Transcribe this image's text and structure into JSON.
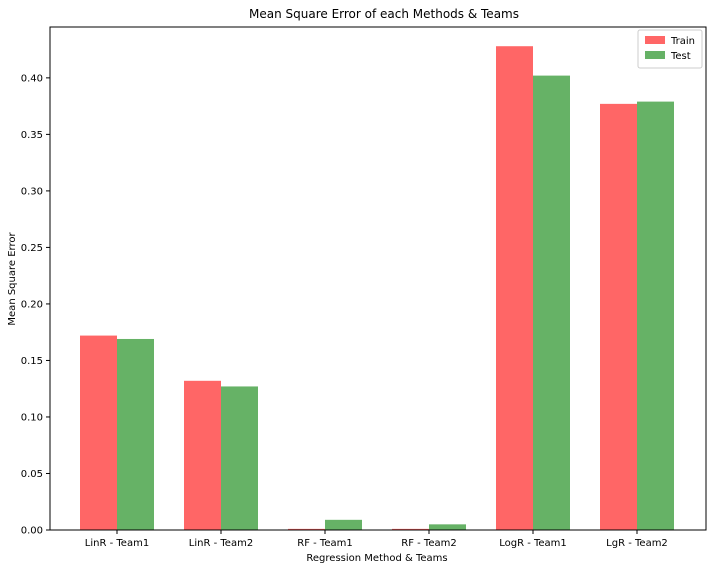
{
  "chart_data": {
    "type": "bar",
    "title": "Mean Square Error of each Methods & Teams",
    "xlabel": "Regression Method & Teams",
    "ylabel": "Mean Square Error",
    "categories": [
      "LinR - Team1",
      "LinR - Team2",
      "RF - Team1",
      "RF - Team2",
      "LogR - Team1",
      "LgR - Team2"
    ],
    "series": [
      {
        "name": "Train",
        "color": "#ff6666",
        "values": [
          0.172,
          0.132,
          0.001,
          0.001,
          0.428,
          0.377
        ]
      },
      {
        "name": "Test",
        "color": "#66b266",
        "values": [
          0.169,
          0.127,
          0.009,
          0.005,
          0.402,
          0.379
        ]
      }
    ],
    "ylim": [
      0,
      0.445
    ],
    "yticks": [
      0.0,
      0.05,
      0.1,
      0.15,
      0.2,
      0.25,
      0.3,
      0.35,
      0.4
    ],
    "ytick_labels": [
      "0.00",
      "0.05",
      "0.10",
      "0.15",
      "0.20",
      "0.25",
      "0.30",
      "0.35",
      "0.40"
    ],
    "grid": false,
    "legend_position": "top-right"
  }
}
